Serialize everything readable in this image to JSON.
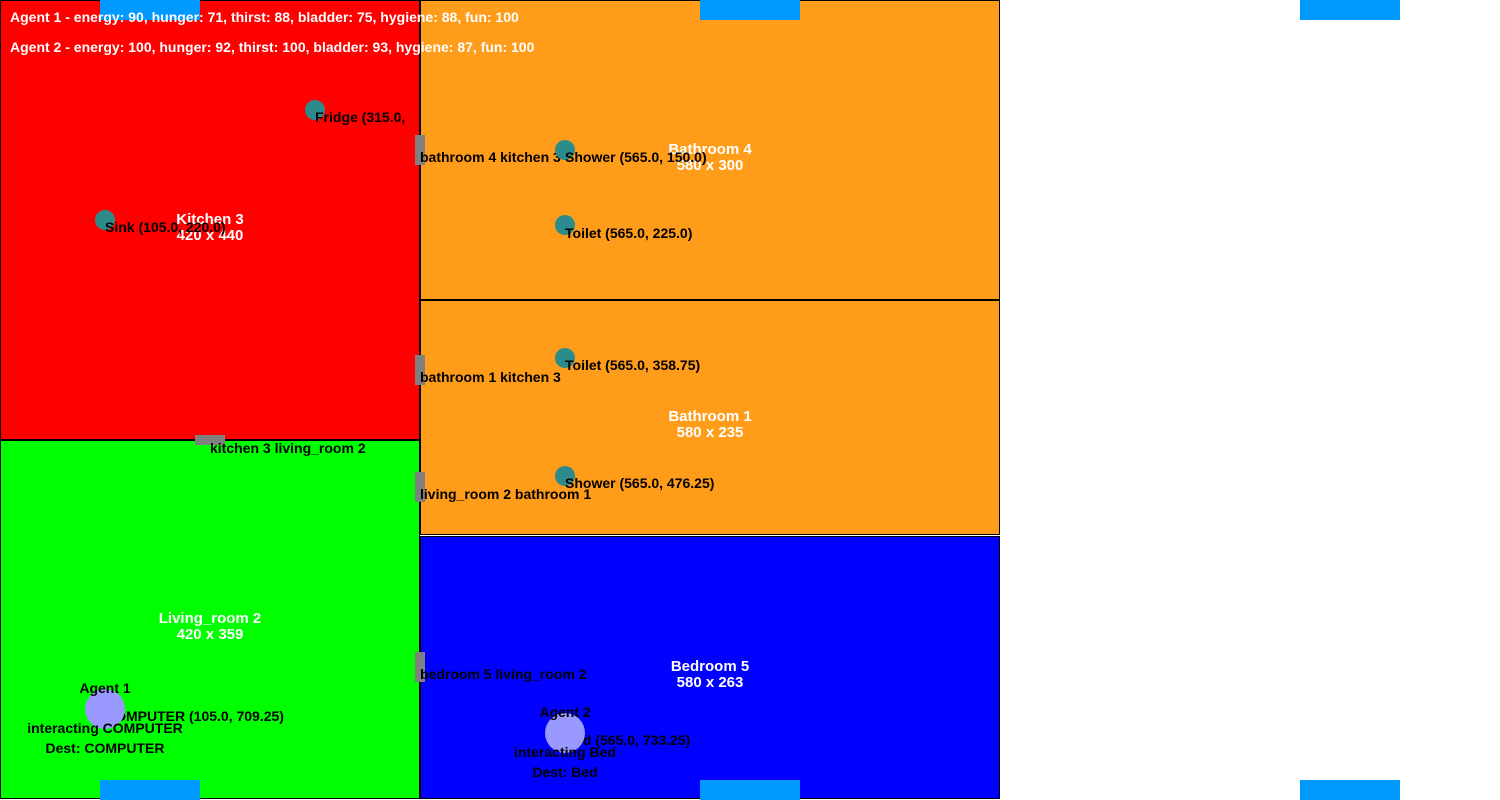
{
  "colors": {
    "kitchen": "#ff0000",
    "living_room": "#00ff00",
    "bathroom": "#ff9c1a",
    "bedroom": "#0000ff",
    "object": "#2e8b8b",
    "agent": "#9999ff",
    "door": "#808080",
    "edge_bar": "#0099ff"
  },
  "stats": {
    "agent1": "Agent 1 - energy: 90, hunger: 71, thirst: 88, bladder: 75, hygiene: 88, fun: 100",
    "agent2": "Agent 2 - energy: 100, hunger: 92, thirst: 100, bladder: 93, hygiene: 87, fun: 100"
  },
  "rooms": {
    "kitchen3": {
      "name": "Kitchen 3",
      "size": "420 x 440"
    },
    "bathroom4": {
      "name": "Bathroom 4",
      "size": "580 x 300"
    },
    "bathroom1": {
      "name": "Bathroom 1",
      "size": "580 x 235"
    },
    "living_room2": {
      "name": "Living_room 2",
      "size": "420 x 359"
    },
    "bedroom5": {
      "name": "Bedroom 5",
      "size": "580 x 263"
    }
  },
  "doors": {
    "bathroom4_kitchen3": "bathroom 4 kitchen 3",
    "bathroom1_kitchen3": "bathroom 1 kitchen 3",
    "kitchen3_living_room2": "kitchen 3 living_room 2",
    "living_room2_bathroom1": "living_room 2 bathroom 1",
    "bedroom5_living_room2": "bedroom 5 living_room 2"
  },
  "objects": {
    "fridge": "Fridge (315.0,",
    "sink": "Sink (105.0, 220.0)",
    "shower_b4": "Shower (565.0, 150.0)",
    "toilet_b4": "Toilet (565.0, 225.0)",
    "toilet_b1": "Toilet (565.0, 358.75)",
    "shower_b1": "Shower (565.0, 476.25)",
    "computer": "COMPUTER (105.0, 709.25)",
    "bed": "Bed (565.0, 733.25)"
  },
  "agents": {
    "agent1": {
      "name": "Agent 1",
      "status": "interacting COMPUTER",
      "dest": "Dest: COMPUTER"
    },
    "agent2": {
      "name": "Agent 2",
      "status": "interacting Bed",
      "dest": "Dest: Bed"
    }
  }
}
